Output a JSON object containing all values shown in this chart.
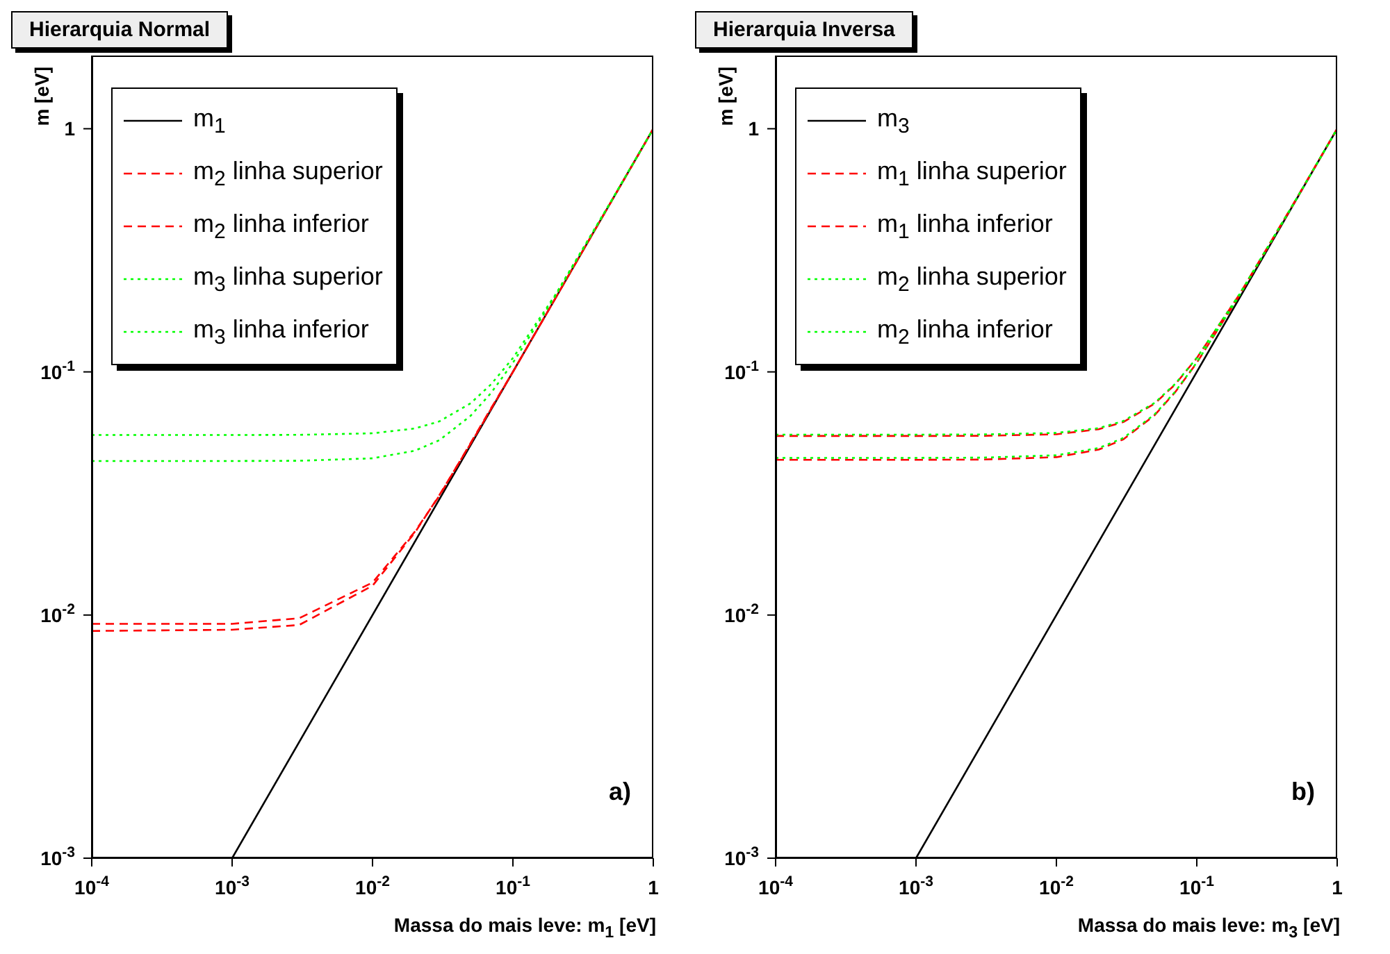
{
  "chart_data": [
    {
      "type": "line",
      "title": "Hierarquia Normal",
      "xlabel": "Massa do mais leve:  m$_{1}$ [eV]",
      "ylabel": "m [eV]",
      "annotations": [
        "a)"
      ],
      "log": "xy",
      "legend": "top left",
      "xlim": [
        0.0001,
        1
      ],
      "ylim": [
        0.001,
        2
      ],
      "xticks": [
        {
          "value": 0.0001,
          "label": "10$^{-4}$"
        },
        {
          "value": 0.001,
          "label": "10$^{-3}$"
        },
        {
          "value": 0.01,
          "label": "10$^{-2}$"
        },
        {
          "value": 0.1,
          "label": "10$^{-1}$"
        },
        1
      ],
      "yticks": [
        {
          "value": 0.001,
          "label": "10$^{-3}$"
        },
        {
          "value": 0.01,
          "label": "10$^{-2}$"
        },
        {
          "value": 0.1,
          "label": "10$^{-1}$"
        },
        1
      ],
      "series": [
        {
          "name": "m$_{1}$",
          "color": "#000000",
          "line_style": "solid",
          "x": [
            0.001,
            1
          ],
          "values": [
            0.001,
            1
          ]
        },
        {
          "name": "m$_{2}$ linha superior",
          "color": "#ff0000",
          "line_style": "dashed",
          "x": [
            0.0001,
            0.001,
            0.003,
            0.01,
            0.02,
            0.03,
            0.05,
            0.07,
            0.1,
            0.2,
            0.5,
            1
          ],
          "values": [
            0.0092,
            0.0092,
            0.0097,
            0.0136,
            0.022,
            0.031,
            0.051,
            0.071,
            0.1,
            0.2,
            0.5,
            1
          ]
        },
        {
          "name": "m$_{2}$ linha inferior",
          "color": "#ff0000",
          "line_style": "dashed",
          "x": [
            0.0001,
            0.001,
            0.003,
            0.01,
            0.02,
            0.03,
            0.05,
            0.07,
            0.1,
            0.2,
            0.5,
            1
          ],
          "values": [
            0.0086,
            0.0087,
            0.0091,
            0.0132,
            0.0218,
            0.0312,
            0.0507,
            0.0705,
            0.1,
            0.2,
            0.5,
            1
          ]
        },
        {
          "name": "m$_{3}$ linha superior",
          "color": "#00ff00",
          "line_style": "dotted",
          "x": [
            0.0001,
            0.001,
            0.003,
            0.01,
            0.02,
            0.03,
            0.05,
            0.07,
            0.1,
            0.2,
            0.5,
            1
          ],
          "values": [
            0.055,
            0.055,
            0.0551,
            0.0559,
            0.0585,
            0.0626,
            0.0743,
            0.089,
            0.114,
            0.207,
            0.503,
            1
          ]
        },
        {
          "name": "m$_{3}$ linha inferior",
          "color": "#00ff00",
          "line_style": "dotted",
          "x": [
            0.0001,
            0.001,
            0.003,
            0.01,
            0.02,
            0.03,
            0.05,
            0.07,
            0.1,
            0.2,
            0.5,
            1
          ],
          "values": [
            0.043,
            0.043,
            0.0431,
            0.0441,
            0.0474,
            0.0524,
            0.066,
            0.082,
            0.109,
            0.205,
            0.502,
            1
          ]
        }
      ]
    },
    {
      "type": "line",
      "title": "Hierarquia Inversa",
      "xlabel": "Massa do mais leve:  m$_{3}$ [eV]",
      "ylabel": "m [eV]",
      "annotations": [
        "b)"
      ],
      "log": "xy",
      "legend": "top left",
      "xlim": [
        0.0001,
        1
      ],
      "ylim": [
        0.001,
        2
      ],
      "xticks": [
        {
          "value": 0.0001,
          "label": "10$^{-4}$"
        },
        {
          "value": 0.001,
          "label": "10$^{-3}$"
        },
        {
          "value": 0.01,
          "label": "10$^{-2}$"
        },
        {
          "value": 0.1,
          "label": "10$^{-1}$"
        },
        1
      ],
      "yticks": [
        {
          "value": 0.001,
          "label": "10$^{-3}$"
        },
        {
          "value": 0.01,
          "label": "10$^{-2}$"
        },
        {
          "value": 0.1,
          "label": "10$^{-1}$"
        },
        1
      ],
      "series": [
        {
          "name": "m$_{3}$",
          "color": "#000000",
          "line_style": "solid",
          "x": [
            0.001,
            1
          ],
          "values": [
            0.001,
            1
          ]
        },
        {
          "name": "m$_{1}$ linha superior",
          "color": "#ff0000",
          "line_style": "dashed",
          "x": [
            0.0001,
            0.001,
            0.003,
            0.01,
            0.02,
            0.03,
            0.05,
            0.07,
            0.1,
            0.2,
            0.5,
            1
          ],
          "values": [
            0.0545,
            0.0545,
            0.0546,
            0.0554,
            0.0581,
            0.0622,
            0.074,
            0.0887,
            0.114,
            0.207,
            0.503,
            1
          ]
        },
        {
          "name": "m$_{1}$ linha inferior",
          "color": "#ff0000",
          "line_style": "dashed",
          "x": [
            0.0001,
            0.001,
            0.003,
            0.01,
            0.02,
            0.03,
            0.05,
            0.07,
            0.1,
            0.2,
            0.5,
            1
          ],
          "values": [
            0.0435,
            0.0435,
            0.0436,
            0.0446,
            0.0479,
            0.0528,
            0.0663,
            0.0824,
            0.109,
            0.205,
            0.502,
            1
          ]
        },
        {
          "name": "m$_{2}$ linha superior",
          "color": "#00ff00",
          "line_style": "dotted",
          "x": [
            0.0001,
            0.001,
            0.003,
            0.01,
            0.02,
            0.03,
            0.05,
            0.07,
            0.1,
            0.2,
            0.5,
            1
          ],
          "values": [
            0.0552,
            0.0552,
            0.0553,
            0.0561,
            0.0587,
            0.0628,
            0.0745,
            0.0891,
            0.1142,
            0.2075,
            0.503,
            1
          ]
        },
        {
          "name": "m$_{2}$ linha inferior",
          "color": "#00ff00",
          "line_style": "dotted",
          "x": [
            0.0001,
            0.001,
            0.003,
            0.01,
            0.02,
            0.03,
            0.05,
            0.07,
            0.1,
            0.2,
            0.5,
            1
          ],
          "values": [
            0.0443,
            0.0443,
            0.0444,
            0.0454,
            0.0486,
            0.0535,
            0.0668,
            0.0828,
            0.1094,
            0.2049,
            0.502,
            1
          ]
        }
      ]
    }
  ]
}
